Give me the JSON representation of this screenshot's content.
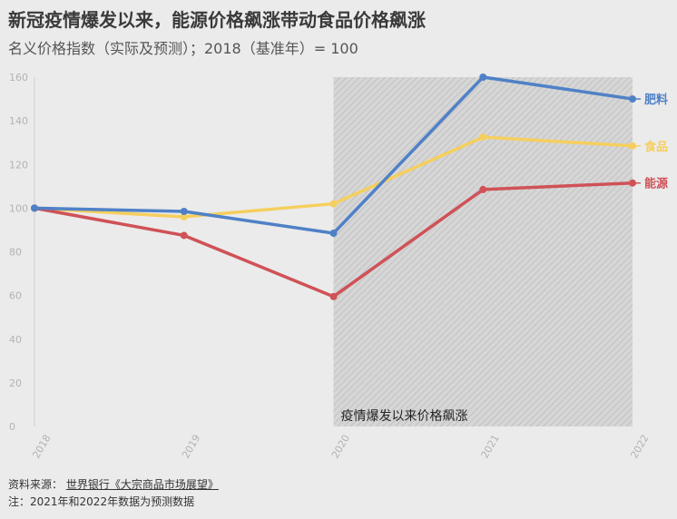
{
  "title": "新冠疫情爆发以来，能源价格飙涨带动食品价格飙涨",
  "subtitle": "名义价格指数（实际及预测）；2018（基准年）= 100",
  "footer": {
    "source_label": "资料来源：",
    "source_text": "世界银行《大宗商品市场展望》",
    "note": "注：2021年和2022年数据为预测数据"
  },
  "chart_data": {
    "type": "line",
    "x": [
      "2018",
      "2019",
      "2020",
      "2021",
      "2022"
    ],
    "ylim": [
      0,
      160
    ],
    "yticks": [
      0,
      20,
      40,
      60,
      80,
      100,
      120,
      140,
      160
    ],
    "series": [
      {
        "name": "肥料",
        "color": "#4f81c7",
        "values": [
          100,
          98.5,
          88.5,
          160,
          150
        ]
      },
      {
        "name": "食品",
        "color": "#f5cf5e",
        "values": [
          100,
          96,
          102,
          132.5,
          128.5
        ]
      },
      {
        "name": "能源",
        "color": "#cf5257",
        "color_label": "#cf5257",
        "values": [
          100,
          87.5,
          59.5,
          108.5,
          111.5
        ]
      }
    ],
    "shaded_region": {
      "from": "2020",
      "to": "2022",
      "label": "疫情爆发以来价格飙涨"
    },
    "grid": false,
    "legend": "right-inline"
  }
}
